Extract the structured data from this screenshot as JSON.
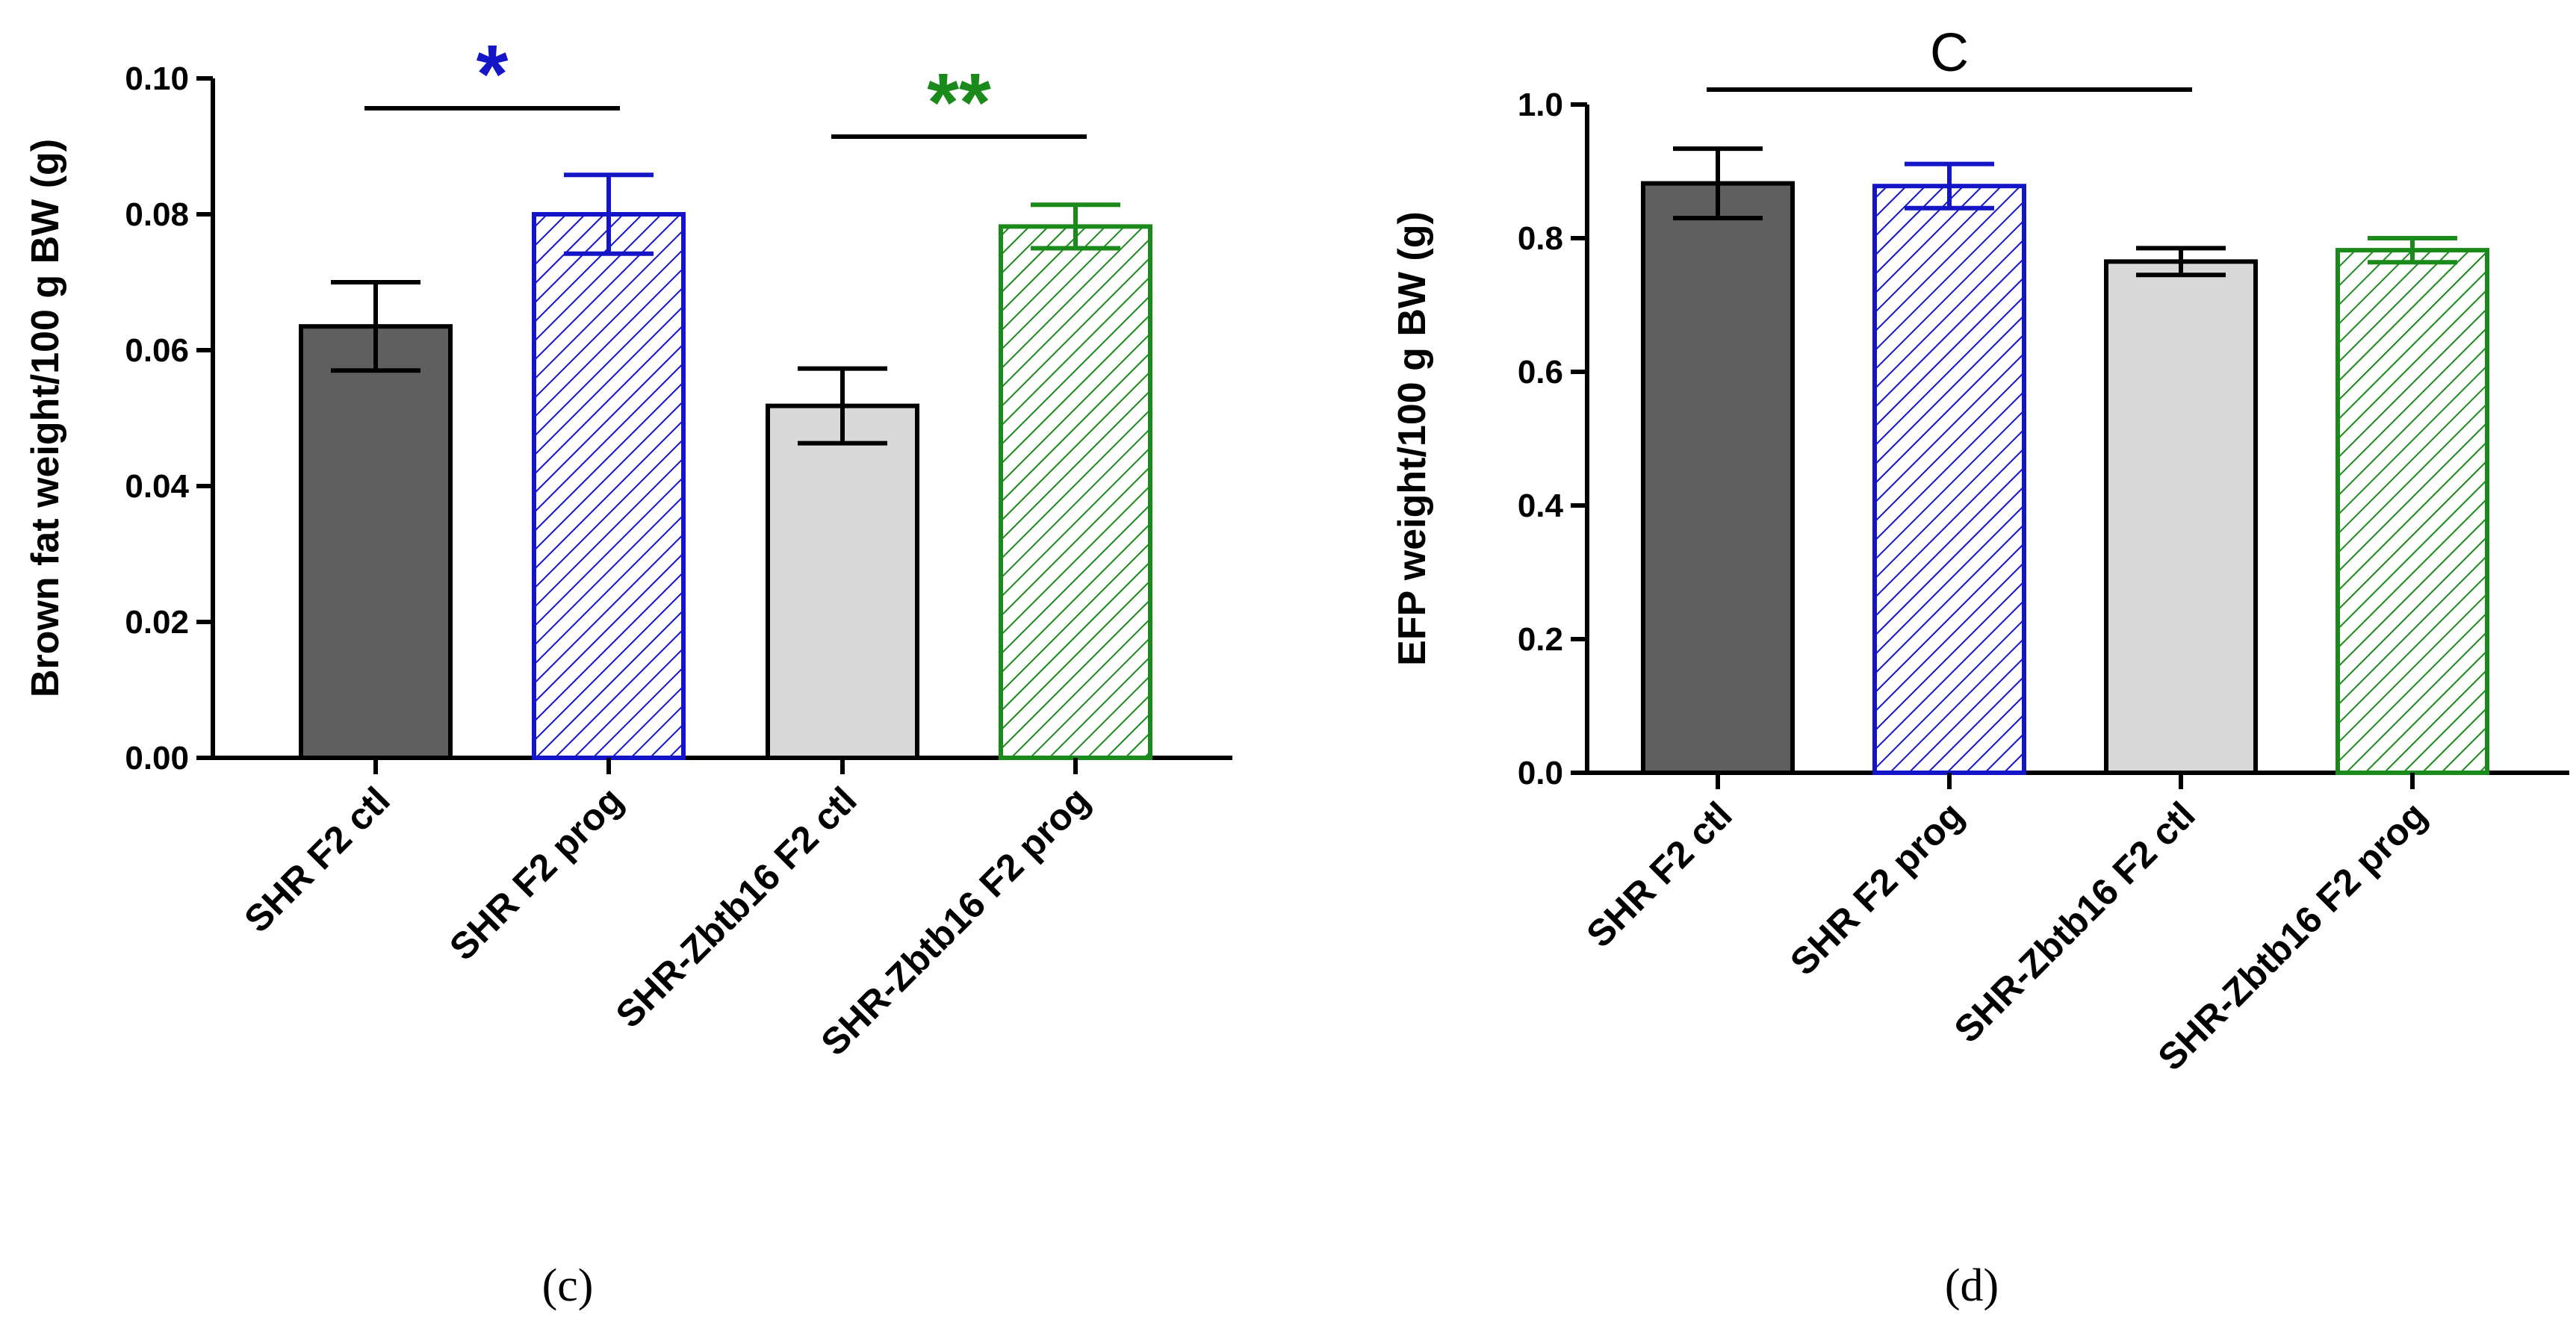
{
  "chart_data": [
    {
      "panel": "c",
      "panel_label": "(c)",
      "type": "bar",
      "ylabel": "Brown fat weight/100 g BW (g)",
      "xlabel": "",
      "ylim": [
        0,
        0.1
      ],
      "yticks": [
        0.0,
        0.02,
        0.04,
        0.06,
        0.08,
        0.1
      ],
      "ytick_labels": [
        "0.00",
        "0.02",
        "0.04",
        "0.06",
        "0.08",
        "0.10"
      ],
      "categories": [
        "SHR F2 ctl",
        "SHR F2 prog",
        "SHR-Zbtb16 F2 ctl",
        "SHR-Zbtb16 F2 prog"
      ],
      "values": [
        0.0635,
        0.08,
        0.0518,
        0.0782
      ],
      "errors": [
        0.0065,
        0.0058,
        0.0055,
        0.0032
      ],
      "colors": [
        "#5f5f5f",
        "#1515c8",
        "#d8d8d8",
        "#1a8a1a"
      ],
      "hatched": [
        false,
        true,
        false,
        true
      ],
      "significance": [
        {
          "from": 0,
          "to": 1,
          "label": "*",
          "color": "#1515c8"
        },
        {
          "from": 2,
          "to": 3,
          "label": "**",
          "color": "#1a8a1a"
        }
      ]
    },
    {
      "panel": "d",
      "panel_label": "(d)",
      "type": "bar",
      "ylabel": "EFP weight/100 g BW (g)",
      "xlabel": "",
      "ylim": [
        0,
        1.0
      ],
      "yticks": [
        0.0,
        0.2,
        0.4,
        0.6,
        0.8,
        1.0
      ],
      "ytick_labels": [
        "0.0",
        "0.2",
        "0.4",
        "0.6",
        "0.8",
        "1.0"
      ],
      "categories": [
        "SHR F2 ctl",
        "SHR F2 prog",
        "SHR-Zbtb16 F2 ctl",
        "SHR-Zbtb16 F2 prog"
      ],
      "values": [
        0.882,
        0.878,
        0.765,
        0.782
      ],
      "errors": [
        0.052,
        0.033,
        0.02,
        0.018
      ],
      "colors": [
        "#5f5f5f",
        "#1515c8",
        "#d8d8d8",
        "#1a8a1a"
      ],
      "hatched": [
        false,
        true,
        false,
        true
      ],
      "significance": [
        {
          "from": 0,
          "to": 2,
          "label": "C",
          "color": "#000000"
        }
      ]
    }
  ]
}
